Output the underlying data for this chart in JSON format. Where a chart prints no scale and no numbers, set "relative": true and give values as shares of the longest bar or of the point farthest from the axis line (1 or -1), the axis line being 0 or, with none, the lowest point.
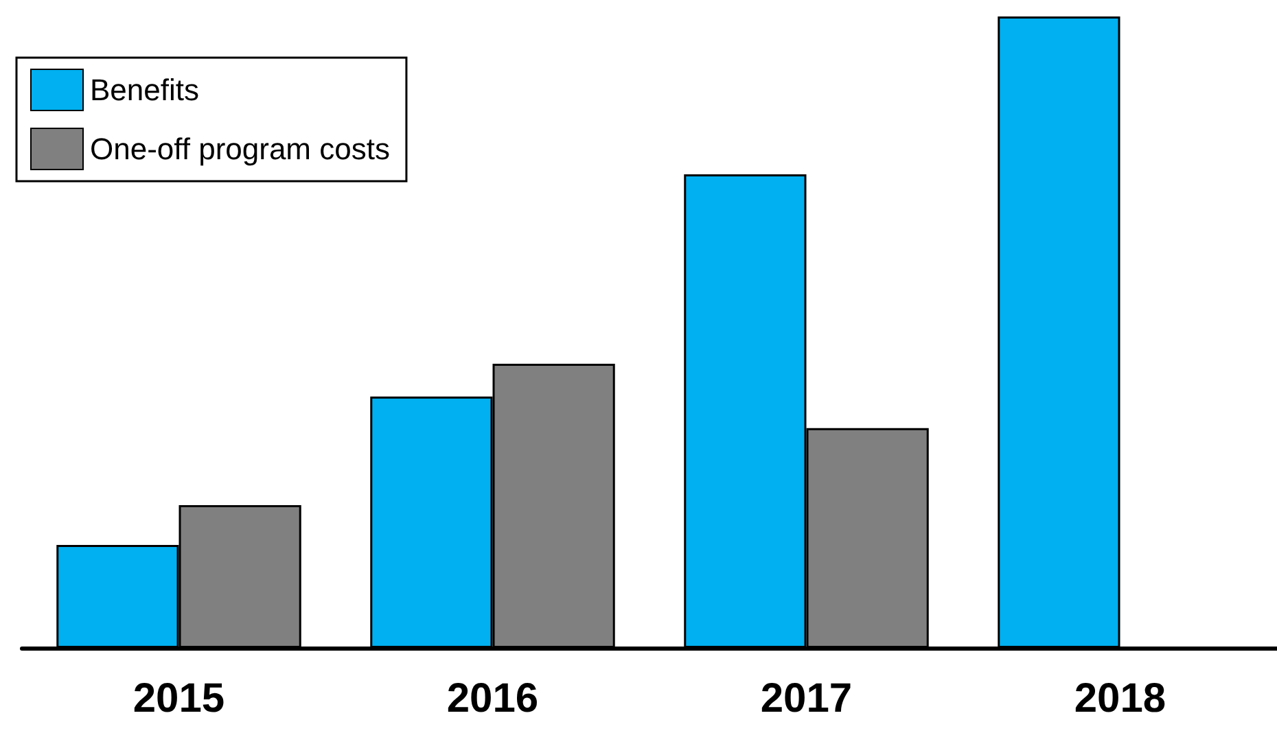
{
  "chart_data": {
    "type": "bar",
    "relative": true,
    "categories": [
      "2015",
      "2016",
      "2017",
      "2018"
    ],
    "series": [
      {
        "name": "Benefits",
        "color": "#00b0f0",
        "values": [
          0.163,
          0.398,
          0.75,
          1
        ]
      },
      {
        "name": "One-off program costs",
        "color": "#808080",
        "values": [
          0.226,
          0.45,
          0.348,
          null
        ]
      }
    ],
    "legend": "top left"
  }
}
